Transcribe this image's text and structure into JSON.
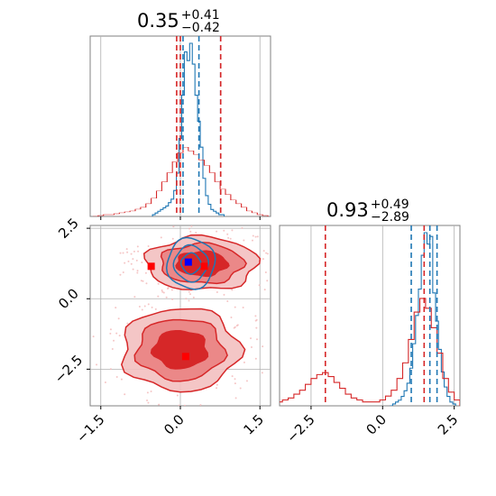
{
  "chart_data": {
    "type": "corner",
    "colors": {
      "blue": "#1f77b4",
      "red": "#d62728",
      "marker_blue": "#0000ff",
      "marker_red": "#ff0000"
    },
    "panels": [
      {
        "id": "hist-x",
        "type": "histogram",
        "title_value": "0.35",
        "title_sup": "+0.41",
        "title_sub": "−0.42",
        "xlim": [
          -1.7,
          1.7
        ],
        "xticks": [
          -1.5,
          0.0,
          1.5
        ],
        "blue_dashed_lines": [
          0.05,
          0.35,
          0.76
        ],
        "red_dashed_lines": [
          -0.07,
          0.0,
          0.76
        ],
        "series": [
          {
            "name": "",
            "color": "#1f77b4",
            "x": [
              -0.5,
              -0.45,
              -0.4,
              -0.35,
              -0.3,
              -0.25,
              -0.2,
              -0.15,
              -0.1,
              -0.05,
              0.0,
              0.05,
              0.1,
              0.15,
              0.2,
              0.25,
              0.3,
              0.35,
              0.4,
              0.45,
              0.5,
              0.55,
              0.6,
              0.65,
              0.7,
              0.75,
              0.8
            ],
            "density": [
              0.01,
              0.02,
              0.03,
              0.04,
              0.05,
              0.06,
              0.08,
              0.1,
              0.15,
              0.25,
              0.45,
              0.7,
              0.95,
              0.9,
              1.0,
              0.88,
              0.7,
              0.55,
              0.4,
              0.22,
              0.12,
              0.07,
              0.04,
              0.03,
              0.02,
              0.01,
              0.01
            ]
          },
          {
            "name": "",
            "color": "#d62728",
            "x": [
              -1.6,
              -1.5,
              -1.4,
              -1.3,
              -1.2,
              -1.1,
              -1.0,
              -0.9,
              -0.8,
              -0.7,
              -0.6,
              -0.5,
              -0.4,
              -0.3,
              -0.2,
              -0.1,
              0.0,
              0.1,
              0.2,
              0.3,
              0.4,
              0.5,
              0.6,
              0.7,
              0.8,
              0.9,
              1.0,
              1.1,
              1.2,
              1.3,
              1.4,
              1.5,
              1.6
            ],
            "density": [
              0.0,
              0.005,
              0.01,
              0.01,
              0.015,
              0.02,
              0.025,
              0.03,
              0.04,
              0.05,
              0.07,
              0.1,
              0.14,
              0.19,
              0.24,
              0.3,
              0.35,
              0.38,
              0.36,
              0.34,
              0.31,
              0.28,
              0.24,
              0.19,
              0.15,
              0.12,
              0.09,
              0.07,
              0.05,
              0.03,
              0.02,
              0.01,
              0.005
            ]
          }
        ]
      },
      {
        "id": "scatter-xy",
        "type": "2d-density",
        "xlim": [
          -1.7,
          1.7
        ],
        "ylim": [
          -3.8,
          2.6
        ],
        "xticks": [
          -1.5,
          0.0,
          1.5
        ],
        "yticks": [
          -2.5,
          0.0,
          2.5
        ],
        "xtick_labels": [
          "−1.5",
          "0.0",
          "1.5"
        ],
        "ytick_labels": [
          "−2.5",
          "0.0",
          "2.5"
        ],
        "blue_markers": [
          {
            "x": 0.15,
            "y": 1.3
          }
        ],
        "red_markers": [
          {
            "x": -0.55,
            "y": 1.15
          },
          {
            "x": 0.45,
            "y": 1.15
          },
          {
            "x": 0.1,
            "y": -2.05
          }
        ],
        "red_blobs": [
          {
            "cx": 0.4,
            "cy": 1.25,
            "rx": 1.0,
            "ry": 0.9
          },
          {
            "cx": 0.0,
            "cy": -1.8,
            "rx": 1.05,
            "ry": 1.4
          }
        ],
        "blue_blob": {
          "cx": 0.2,
          "cy": 1.25,
          "rx": 0.45,
          "ry": 0.9
        }
      },
      {
        "id": "hist-y",
        "type": "histogram",
        "title_value": "0.93",
        "title_sup": "+0.49",
        "title_sub": "−2.89",
        "xlim": [
          -3.6,
          2.7
        ],
        "xticks": [
          -2.5,
          0.0,
          2.5
        ],
        "xtick_labels": [
          "−2.5",
          "0.0",
          "2.5"
        ],
        "blue_dashed_lines": [
          1.0,
          1.65,
          1.9
        ],
        "red_dashed_lines": [
          -2.0,
          1.45
        ],
        "series": [
          {
            "name": "",
            "color": "#1f77b4",
            "x": [
              0.3,
              0.4,
              0.5,
              0.6,
              0.7,
              0.8,
              0.9,
              1.0,
              1.1,
              1.2,
              1.3,
              1.4,
              1.5,
              1.6,
              1.7,
              1.8,
              1.9,
              2.0,
              2.1,
              2.2,
              2.3,
              2.4,
              2.5
            ],
            "density": [
              0.0,
              0.01,
              0.02,
              0.03,
              0.05,
              0.08,
              0.12,
              0.2,
              0.33,
              0.48,
              0.62,
              0.8,
              0.92,
              0.86,
              0.9,
              0.6,
              0.45,
              0.3,
              0.18,
              0.1,
              0.05,
              0.02,
              0.01
            ]
          },
          {
            "name": "",
            "color": "#d62728",
            "x": [
              -3.6,
              -3.4,
              -3.2,
              -3.0,
              -2.8,
              -2.6,
              -2.4,
              -2.2,
              -2.0,
              -1.8,
              -1.6,
              -1.4,
              -1.2,
              -1.0,
              -0.8,
              -0.6,
              -0.4,
              -0.2,
              0.0,
              0.2,
              0.4,
              0.6,
              0.8,
              1.0,
              1.2,
              1.4,
              1.6,
              1.8,
              2.0,
              2.2,
              2.4,
              2.6
            ],
            "density": [
              0.02,
              0.03,
              0.04,
              0.06,
              0.08,
              0.11,
              0.14,
              0.16,
              0.17,
              0.15,
              0.12,
              0.09,
              0.06,
              0.04,
              0.03,
              0.02,
              0.02,
              0.02,
              0.03,
              0.05,
              0.08,
              0.14,
              0.22,
              0.34,
              0.48,
              0.55,
              0.5,
              0.4,
              0.27,
              0.14,
              0.07,
              0.03
            ]
          }
        ]
      }
    ]
  }
}
